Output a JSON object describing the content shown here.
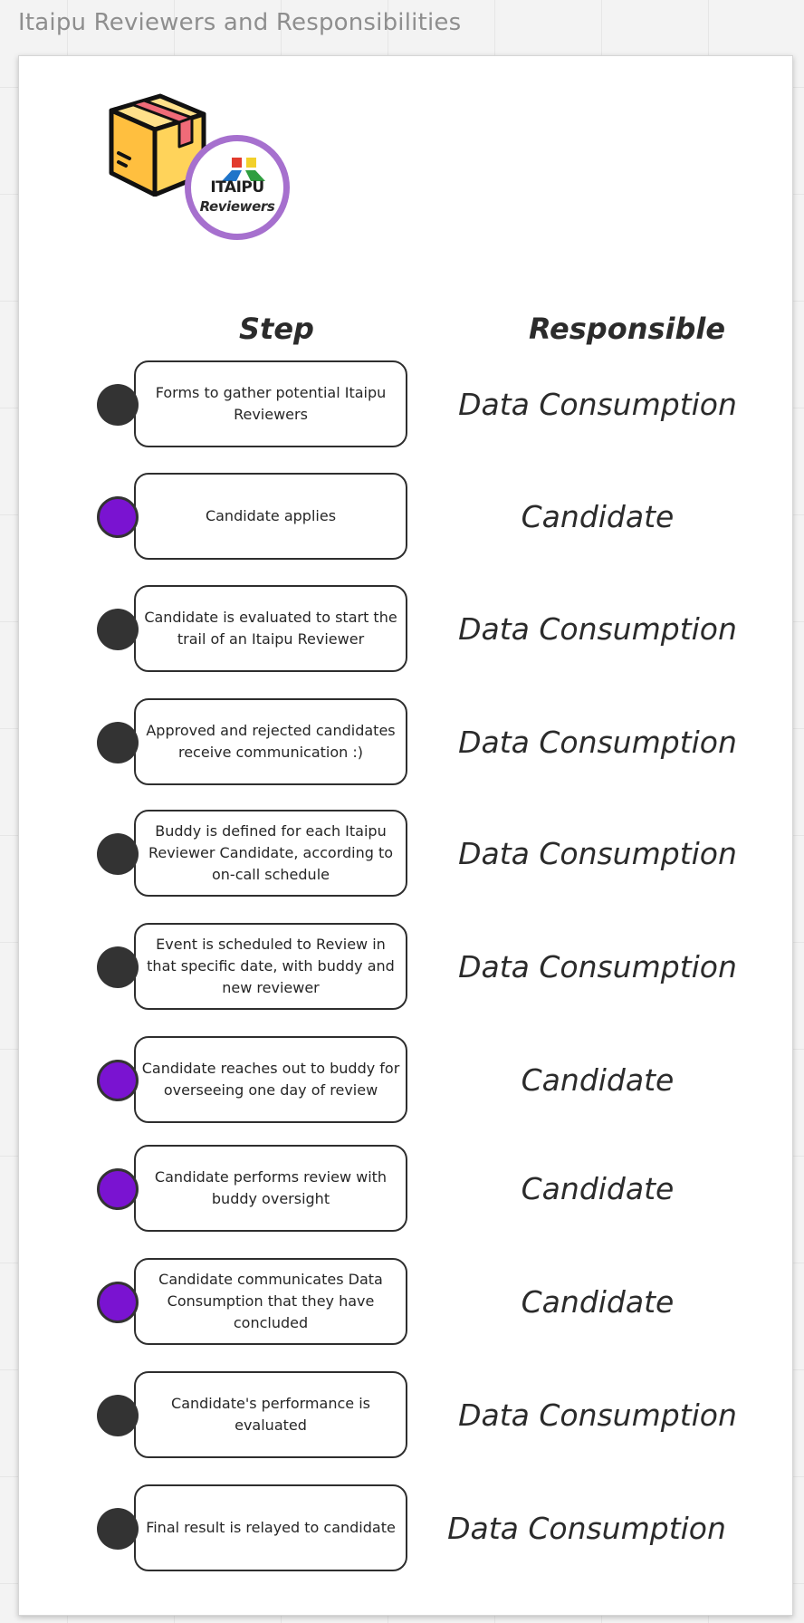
{
  "board": {
    "title": "Itaipu Reviewers and Responsibilities"
  },
  "logo": {
    "icon": "package-box-icon",
    "badge_word": "ITAIPU",
    "badge_sub": "Reviewers",
    "badge_ring_color": "#a670ce",
    "badge_mark_colors": [
      "#e23b2e",
      "#f2d02b",
      "#1f74c9",
      "#2f9e3f"
    ]
  },
  "headers": {
    "step": "Step",
    "responsible": "Responsible"
  },
  "colors": {
    "data_consumption_dot": "#333333",
    "candidate_dot": "#7a13d1"
  },
  "steps": [
    {
      "text": "Forms to gather potential Itaipu Reviewers",
      "responsible": "Data Consumption"
    },
    {
      "text": "Candidate applies",
      "responsible": "Candidate"
    },
    {
      "text": "Candidate is evaluated to start the trail of an Itaipu Reviewer",
      "responsible": "Data Consumption"
    },
    {
      "text": "Approved and rejected candidates receive communication :)",
      "responsible": "Data Consumption"
    },
    {
      "text": "Buddy is defined for each Itaipu Reviewer Candidate, according to on-call schedule",
      "responsible": "Data Consumption"
    },
    {
      "text": "Event is scheduled to Review in that specific date, with buddy and new reviewer",
      "responsible": "Data Consumption"
    },
    {
      "text": "Candidate reaches out to buddy for overseeing one day of review",
      "responsible": "Candidate"
    },
    {
      "text": "Candidate performs review with buddy oversight",
      "responsible": "Candidate"
    },
    {
      "text": "Candidate communicates Data Consumption that they have concluded",
      "responsible": "Candidate"
    },
    {
      "text": "Candidate's performance is evaluated",
      "responsible": "Data Consumption"
    },
    {
      "text": "Final result is relayed to candidate",
      "responsible": "Data Consumption"
    }
  ]
}
